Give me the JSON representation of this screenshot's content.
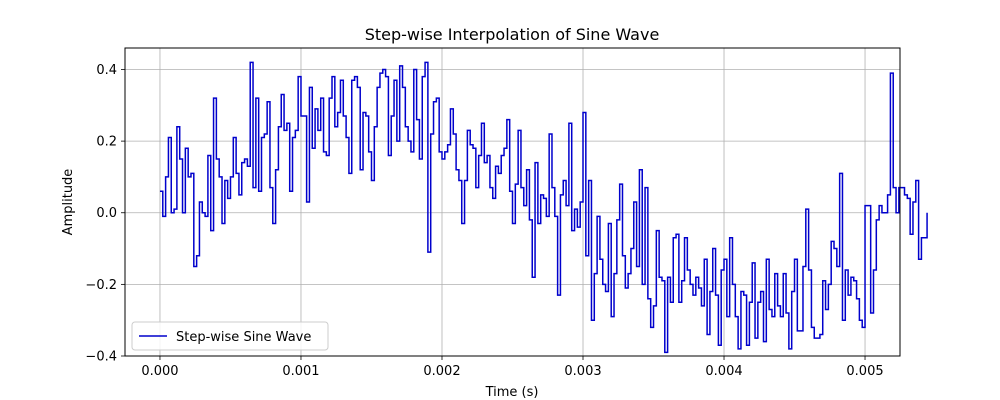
{
  "chart_data": {
    "type": "line",
    "drawstyle": "steps-post",
    "title": "Step-wise Interpolation of Sine Wave",
    "xlabel": "Time (s)",
    "ylabel": "Amplitude",
    "xlim": [
      -0.000248,
      0.005248
    ],
    "ylim": [
      -0.4,
      0.46
    ],
    "xticks": [
      0.0,
      0.001,
      0.002,
      0.003,
      0.004,
      0.005
    ],
    "xtick_labels": [
      "0.000",
      "0.001",
      "0.002",
      "0.003",
      "0.004",
      "0.005"
    ],
    "yticks": [
      -0.4,
      -0.2,
      0.0,
      0.2,
      0.4
    ],
    "ytick_labels": [
      "−0.4",
      "−0.2",
      "0.0",
      "0.2",
      "0.4"
    ],
    "grid": true,
    "legend_position": "lower-left",
    "series": [
      {
        "name": "Step-wise Sine Wave",
        "color": "#0000cc",
        "x_start": 0.0,
        "x_step": 2e-05,
        "values": [
          0.06,
          -0.01,
          0.1,
          0.21,
          0.0,
          0.01,
          0.24,
          0.15,
          0.0,
          0.18,
          0.1,
          0.11,
          -0.15,
          -0.12,
          0.03,
          0.0,
          -0.01,
          0.16,
          -0.05,
          0.32,
          0.15,
          0.1,
          -0.03,
          0.09,
          0.04,
          0.1,
          0.21,
          0.11,
          0.05,
          0.14,
          0.15,
          0.13,
          0.42,
          0.07,
          0.32,
          0.06,
          0.21,
          0.22,
          0.31,
          0.07,
          -0.03,
          0.12,
          0.24,
          0.33,
          0.23,
          0.25,
          0.06,
          0.21,
          0.23,
          0.38,
          0.27,
          0.27,
          0.03,
          0.35,
          0.18,
          0.29,
          0.23,
          0.32,
          0.17,
          0.16,
          0.32,
          0.38,
          0.24,
          0.28,
          0.37,
          0.27,
          0.21,
          0.11,
          0.37,
          0.38,
          0.35,
          0.12,
          0.28,
          0.27,
          0.17,
          0.09,
          0.24,
          0.35,
          0.39,
          0.4,
          0.38,
          0.16,
          0.27,
          0.37,
          0.2,
          0.41,
          0.35,
          0.24,
          0.2,
          0.17,
          0.4,
          0.26,
          0.15,
          0.38,
          0.42,
          -0.11,
          0.22,
          0.31,
          0.32,
          0.17,
          0.15,
          0.17,
          0.19,
          0.29,
          0.22,
          0.12,
          0.09,
          -0.03,
          0.09,
          0.23,
          0.19,
          0.18,
          0.07,
          0.16,
          0.25,
          0.14,
          0.16,
          0.07,
          0.04,
          0.13,
          0.11,
          0.16,
          0.18,
          0.26,
          0.06,
          -0.03,
          0.08,
          0.23,
          0.07,
          0.02,
          0.12,
          -0.02,
          -0.18,
          0.14,
          -0.03,
          0.05,
          0.04,
          -0.01,
          0.22,
          0.07,
          -0.01,
          -0.23,
          0.05,
          0.09,
          0.02,
          0.25,
          -0.05,
          0.01,
          -0.04,
          0.03,
          0.28,
          -0.12,
          0.09,
          -0.3,
          -0.17,
          -0.01,
          -0.13,
          -0.2,
          -0.22,
          -0.03,
          -0.29,
          -0.17,
          -0.02,
          0.08,
          -0.12,
          -0.21,
          -0.17,
          -0.1,
          0.03,
          -0.15,
          0.12,
          -0.2,
          0.07,
          -0.24,
          -0.32,
          -0.26,
          -0.05,
          -0.18,
          -0.19,
          -0.39,
          -0.18,
          -0.25,
          -0.07,
          -0.06,
          -0.25,
          -0.19,
          -0.07,
          -0.16,
          -0.2,
          -0.23,
          -0.18,
          -0.21,
          -0.26,
          -0.13,
          -0.34,
          -0.22,
          -0.1,
          -0.23,
          -0.37,
          -0.16,
          -0.13,
          -0.29,
          -0.07,
          -0.2,
          -0.29,
          -0.38,
          -0.22,
          -0.23,
          -0.37,
          -0.25,
          -0.14,
          -0.35,
          -0.25,
          -0.22,
          -0.36,
          -0.13,
          -0.27,
          -0.29,
          -0.17,
          -0.26,
          -0.29,
          -0.17,
          -0.28,
          -0.38,
          -0.22,
          -0.13,
          -0.33,
          -0.33,
          -0.15,
          0.01,
          -0.16,
          -0.32,
          -0.35,
          -0.35,
          -0.34,
          -0.19,
          -0.27,
          -0.2,
          -0.08,
          -0.1,
          -0.15,
          0.11,
          -0.3,
          -0.16,
          -0.23,
          -0.18,
          -0.19,
          -0.24,
          -0.3,
          -0.32,
          0.02,
          0.02,
          -0.28,
          -0.16,
          -0.02,
          0.02,
          0.0,
          0.0,
          0.05,
          0.39,
          0.07,
          0.0,
          0.07,
          0.07,
          0.05,
          0.04,
          -0.06,
          0.03,
          0.09,
          -0.13,
          -0.07,
          -0.07,
          0.0
        ]
      }
    ]
  }
}
